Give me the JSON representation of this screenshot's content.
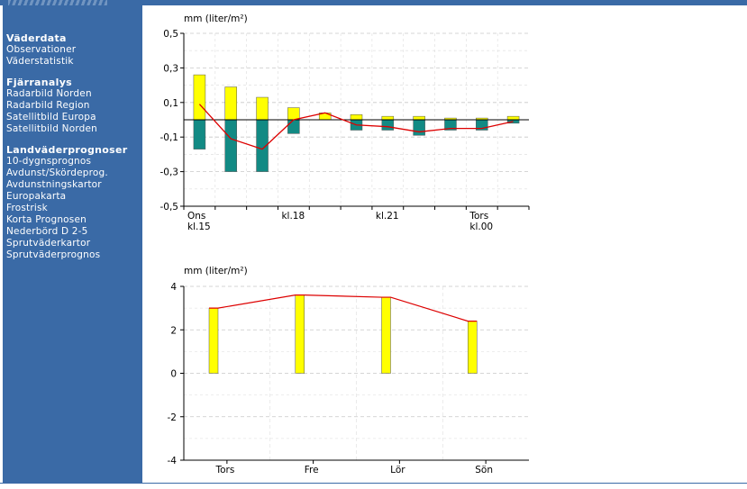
{
  "sidebar": {
    "groups": [
      {
        "heading": "Väderdata",
        "items": [
          "Observationer",
          "Väderstatistik"
        ]
      },
      {
        "heading": "Fjärranalys",
        "items": [
          "Radarbild Norden",
          "Radarbild Region",
          "Satellitbild Europa",
          "Satellitbild Norden"
        ]
      },
      {
        "heading": "Landväderprognoser",
        "items": [
          "10-dygnsprognos",
          "Avdunst/Skördeprog.",
          "Avdunstningskartor",
          "Europakarta",
          "Frostrisk",
          "Korta Prognosen",
          "Nederbörd D 2-5",
          "Sprutväderkartor",
          "Sprutväderprognos"
        ]
      }
    ]
  },
  "colors": {
    "sidebar": "#3a6aa6",
    "positive_bar": "#ffff00",
    "negative_bar": "#128a84",
    "line": "#dd0000"
  },
  "chart_data": [
    {
      "type": "bar",
      "ylabel": "mm (liter/m²)",
      "ylim": [
        -0.5,
        0.5
      ],
      "yticks": [
        "0,5",
        "0,3",
        "0,1",
        "-0,1",
        "-0,3",
        "-0,5"
      ],
      "ytick_values": [
        0.5,
        0.3,
        0.1,
        -0.1,
        -0.3,
        -0.5
      ],
      "x_tick_labels": [
        {
          "line1": "Ons",
          "line2": "kl.15",
          "index": 0
        },
        {
          "line1": "kl.18",
          "line2": "",
          "index": 3
        },
        {
          "line1": "kl.21",
          "line2": "",
          "index": 6
        },
        {
          "line1": "Tors",
          "line2": "kl.00",
          "index": 9
        }
      ],
      "n_slots": 11,
      "series": [
        {
          "values": [
            0.26,
            0.19,
            0.13,
            0.07,
            0.04,
            0.03,
            0.02,
            0.02,
            0.01,
            0.01,
            0.02
          ]
        },
        {
          "values": [
            -0.17,
            -0.3,
            -0.3,
            -0.08,
            0.0,
            -0.06,
            -0.06,
            -0.09,
            -0.06,
            -0.06,
            -0.02
          ]
        },
        {
          "values": [
            0.09,
            -0.11,
            -0.17,
            0.0,
            0.04,
            -0.03,
            -0.04,
            -0.07,
            -0.05,
            -0.05,
            -0.01
          ]
        }
      ],
      "grid": true
    },
    {
      "type": "bar",
      "ylabel": "mm (liter/m²)",
      "ylim": [
        -4,
        4
      ],
      "yticks": [
        "4",
        "2",
        "0",
        "-2",
        "-4"
      ],
      "ytick_values": [
        4,
        2,
        0,
        -2,
        -4
      ],
      "categories": [
        "Tors",
        "Fre",
        "Lör",
        "Sön"
      ],
      "series": [
        {
          "values": [
            3.0,
            3.6,
            3.5,
            2.4
          ]
        },
        {
          "values": [
            3.0,
            3.6,
            3.5,
            2.4
          ]
        }
      ],
      "grid": true
    }
  ]
}
